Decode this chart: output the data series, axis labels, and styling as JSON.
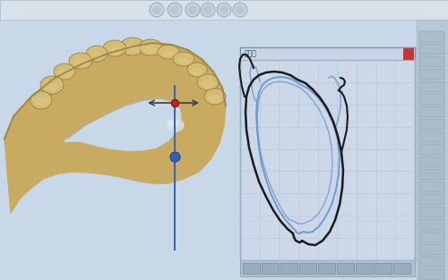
{
  "background_color": "#bfcfdf",
  "main_bg": "#c8d8e8",
  "panel_bg": "#ccd8e8",
  "panel_grid_color": "#afc8dc",
  "tooth_main": "#c8aa60",
  "tooth_highlight": "#d4bc78",
  "tooth_shadow": "#9a8040",
  "tooth_dark": "#b09448",
  "blue_line": "#6090c8",
  "black_line": "#1a1a1a",
  "blue_dot": "#3060b8",
  "red_dot": "#cc2020",
  "axis_blue": "#3868b8",
  "figsize": [
    5.0,
    3.13
  ],
  "dpi": 100,
  "top_bar_color": "#d8e2ea",
  "right_bar_color": "#b8c8d8",
  "panel_title_bg": "#c8d4e4",
  "panel_close_color": "#cc3333"
}
